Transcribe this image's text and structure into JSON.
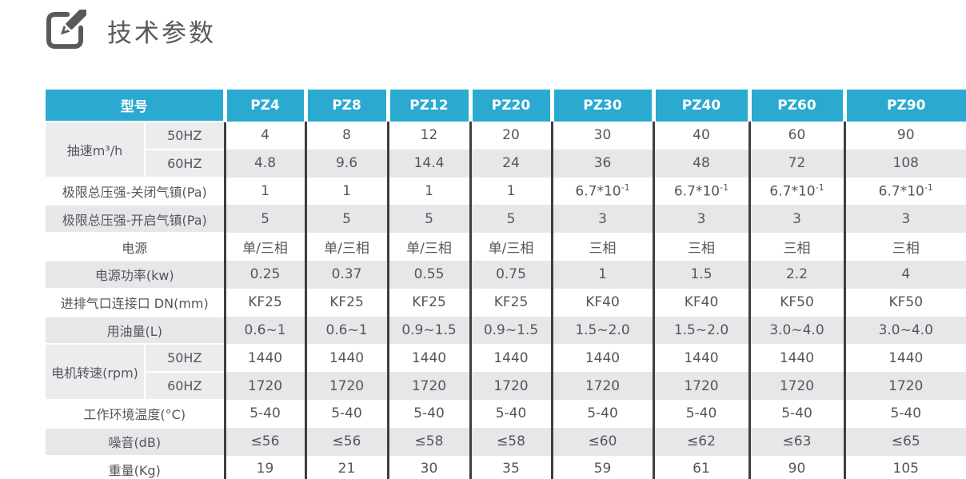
{
  "page": {
    "title": "技术参数"
  },
  "colors": {
    "header_bg": "#2aa9d1",
    "header_text": "#ffffff",
    "stripe_bg": "#e7e7e9",
    "label_bg": "#ececee",
    "border_dark": "#3e3f41",
    "text": "#54565b",
    "title_text": "#58595b"
  },
  "table": {
    "header": {
      "model_label": "型号",
      "models": [
        "PZ4",
        "PZ8",
        "PZ12",
        "PZ20",
        "PZ30",
        "PZ40",
        "PZ60",
        "PZ90"
      ]
    },
    "rows": [
      {
        "label": "抽速m³/h",
        "sub": "50HZ",
        "group": "start",
        "values": [
          "4",
          "8",
          "12",
          "20",
          "30",
          "40",
          "60",
          "90"
        ]
      },
      {
        "sub": "60HZ",
        "group": "end",
        "values": [
          "4.8",
          "9.6",
          "14.4",
          "24",
          "36",
          "48",
          "72",
          "108"
        ]
      },
      {
        "label": "极限总压强-关闭气镇(Pa)",
        "values": [
          "1",
          "1",
          "1",
          "1",
          "6.7*10^-1",
          "6.7*10^-1",
          "6.7*10^-1",
          "6.7*10^-1"
        ]
      },
      {
        "label": "极限总压强-开启气镇(Pa)",
        "values": [
          "5",
          "5",
          "5",
          "5",
          "3",
          "3",
          "3",
          "3"
        ]
      },
      {
        "label": "电源",
        "values": [
          "单/三相",
          "单/三相",
          "单/三相",
          "单/三相",
          "三相",
          "三相",
          "三相",
          "三相"
        ]
      },
      {
        "label": "电源功率(kw)",
        "values": [
          "0.25",
          "0.37",
          "0.55",
          "0.75",
          "1",
          "1.5",
          "2.2",
          "4"
        ]
      },
      {
        "label": "进排气口连接口 DN(mm)",
        "values": [
          "KF25",
          "KF25",
          "KF25",
          "KF25",
          "KF40",
          "KF40",
          "KF50",
          "KF50"
        ]
      },
      {
        "label": "用油量(L)",
        "values": [
          "0.6~1",
          "0.6~1",
          "0.9~1.5",
          "0.9~1.5",
          "1.5~2.0",
          "1.5~2.0",
          "3.0~4.0",
          "3.0~4.0"
        ]
      },
      {
        "label": "电机转速(rpm)",
        "sub": "50HZ",
        "group": "start",
        "values": [
          "1440",
          "1440",
          "1440",
          "1440",
          "1440",
          "1440",
          "1440",
          "1440"
        ]
      },
      {
        "sub": "60HZ",
        "group": "end",
        "values": [
          "1720",
          "1720",
          "1720",
          "1720",
          "1720",
          "1720",
          "1720",
          "1720"
        ]
      },
      {
        "label": "工作环境温度(°C)",
        "values": [
          "5-40",
          "5-40",
          "5-40",
          "5-40",
          "5-40",
          "5-40",
          "5-40",
          "5-40"
        ]
      },
      {
        "label": "噪音(dB)",
        "values": [
          "≤56",
          "≤56",
          "≤58",
          "≤58",
          "≤60",
          "≤62",
          "≤63",
          "≤65"
        ]
      },
      {
        "label": "重量(Kg)",
        "values": [
          "19",
          "21",
          "30",
          "35",
          "59",
          "61",
          "90",
          "105"
        ]
      }
    ]
  },
  "chart_data": {
    "type": "table",
    "title": "技术参数",
    "columns": [
      "型号",
      "PZ4",
      "PZ8",
      "PZ12",
      "PZ20",
      "PZ30",
      "PZ40",
      "PZ60",
      "PZ90"
    ],
    "row_labels": [
      "抽速m³/h 50HZ",
      "抽速m³/h 60HZ",
      "极限总压强-关闭气镇(Pa)",
      "极限总压强-开启气镇(Pa)",
      "电源",
      "电源功率(kw)",
      "进排气口连接口 DN(mm)",
      "用油量(L)",
      "电机转速(rpm) 50HZ",
      "电机转速(rpm) 60HZ",
      "工作环境温度(°C)",
      "噪音(dB)",
      "重量(Kg)"
    ]
  }
}
